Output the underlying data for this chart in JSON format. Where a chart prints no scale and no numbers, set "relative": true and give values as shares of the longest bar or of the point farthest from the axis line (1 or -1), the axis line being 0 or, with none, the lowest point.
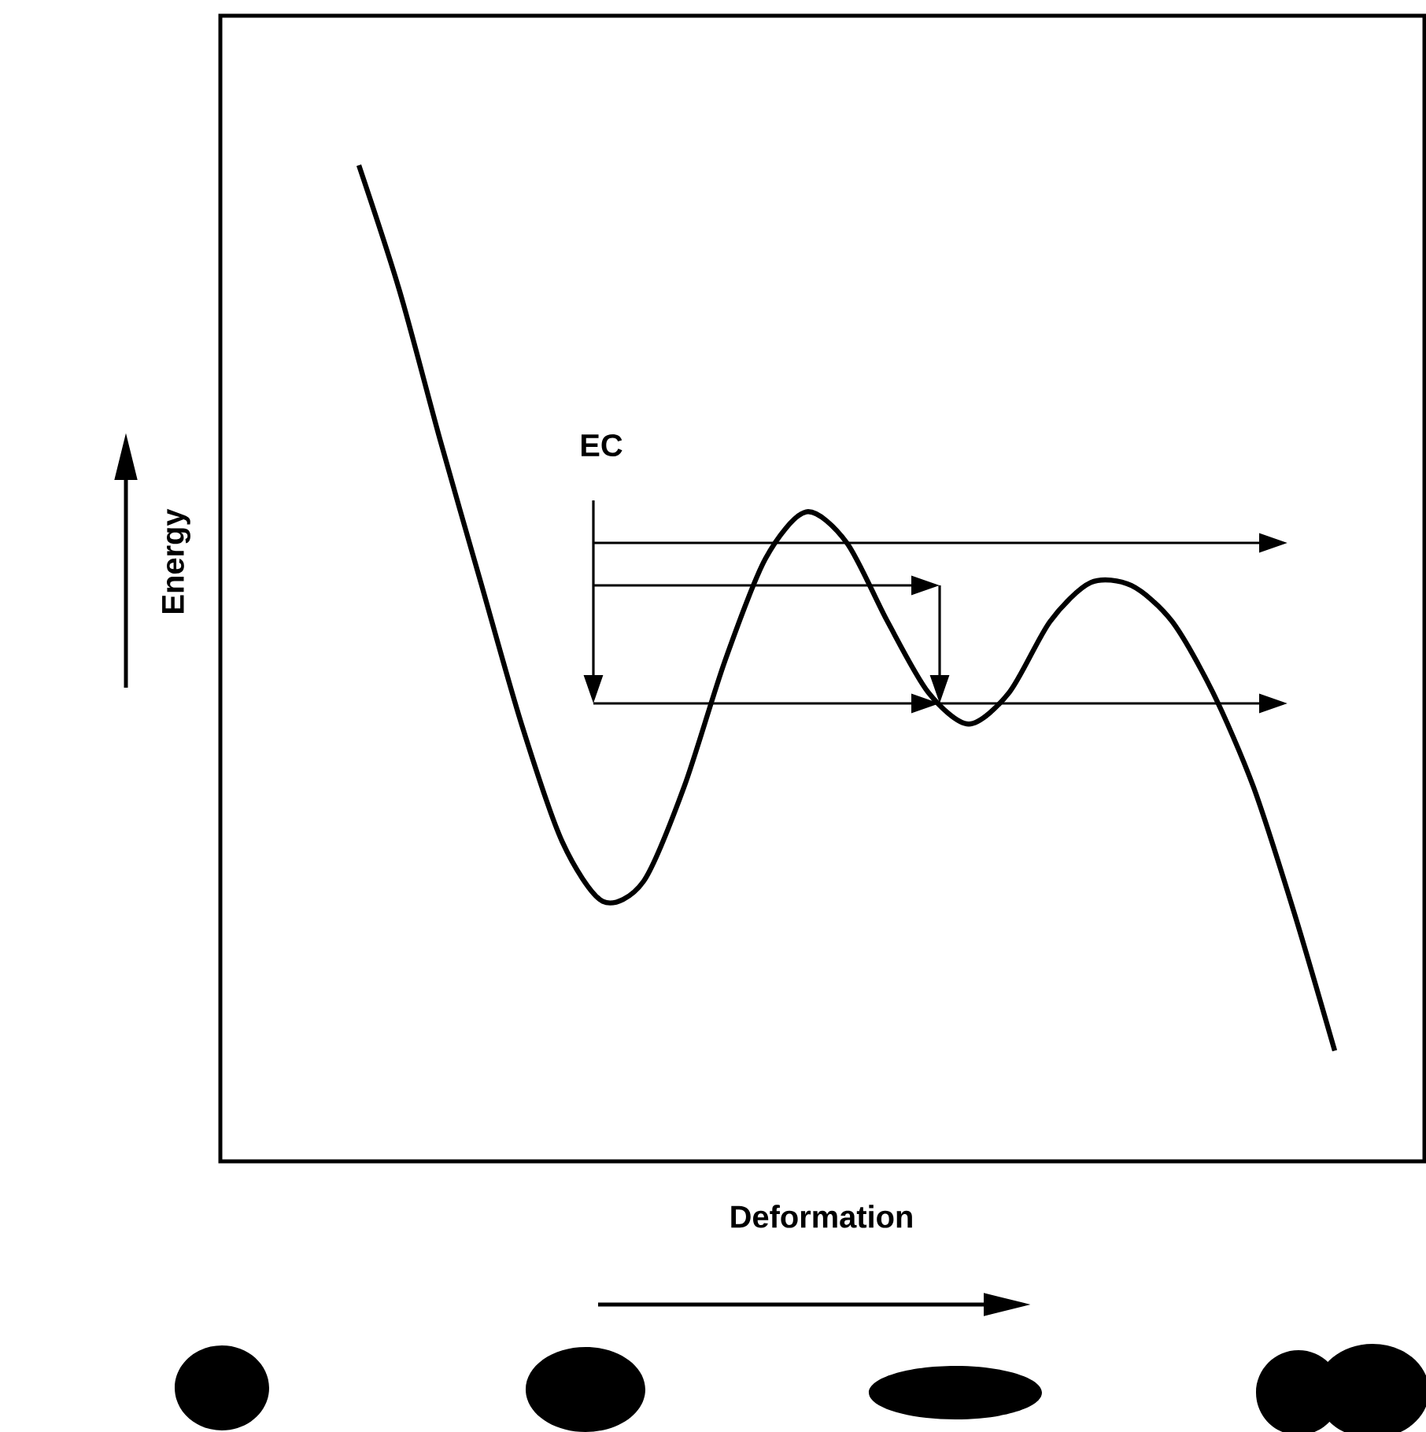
{
  "chart_data": {
    "type": "line",
    "relative": true,
    "xlabel": "Deformation",
    "ylabel": "Energy",
    "annotations": [
      "EC"
    ],
    "categories": [
      null,
      null,
      null,
      null,
      null,
      null,
      null,
      null,
      null,
      null,
      null,
      null,
      null,
      null,
      null,
      null,
      null,
      null,
      null,
      null,
      null,
      null,
      null,
      null,
      null
    ],
    "series": [
      {
        "color": "#000000",
        "values": [
          1,
          0.874,
          0.724,
          0.581,
          0.439,
          0.321,
          0.261,
          0.281,
          0.376,
          0.502,
          0.605,
          0.652,
          0.621,
          0.542,
          0.471,
          0.439,
          0.471,
          0.542,
          0.581,
          0.578,
          0.542,
          0.471,
          0.376,
          0.25,
          0.111
        ]
      }
    ]
  }
}
